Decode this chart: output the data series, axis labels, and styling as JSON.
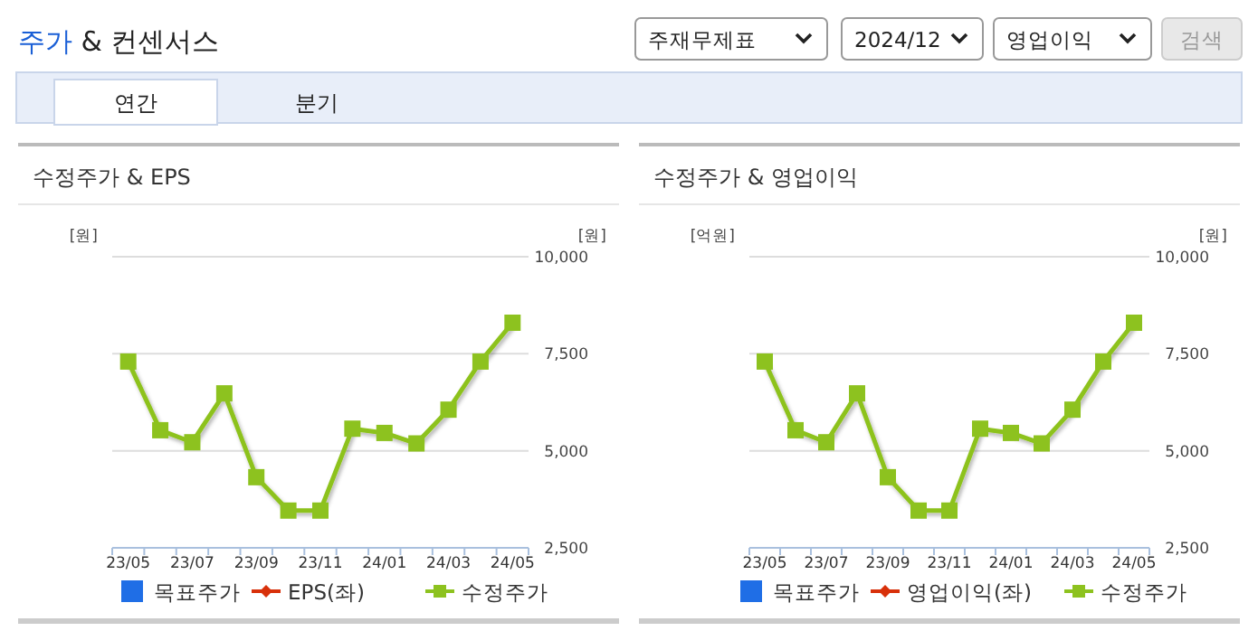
{
  "chart_data": [
    {
      "type": "other",
      "title": "주가 & 컨센서스",
      "annotations": [
        "주재무제표",
        "2024/12",
        "영업이익",
        "검색",
        "연간",
        "분기"
      ]
    },
    {
      "type": "line",
      "title": "수정주가 & EPS",
      "ylabel": "[원]",
      "y2label": "[원]",
      "categories": [
        "23/05",
        null,
        "23/07",
        null,
        "23/09",
        null,
        "23/11",
        null,
        "24/01",
        null,
        "24/03",
        null,
        "24/05"
      ],
      "y2lim": [
        2500,
        10000
      ],
      "y2ticks": [
        {
          "value": 2500,
          "label": "2,500"
        },
        {
          "value": 5000,
          "label": "5,000"
        },
        {
          "value": 7500,
          "label": "7,500"
        },
        {
          "value": 10000,
          "label": "10,000"
        }
      ],
      "grid": "y",
      "legend": "bottom",
      "marker": "square",
      "series": [
        {
          "name": "목표주가",
          "type": "scatter",
          "marker": "square",
          "color": "#1f6ee6",
          "values": [
            null,
            null,
            null,
            null,
            null,
            null,
            null,
            null,
            null,
            null,
            null,
            null,
            null
          ]
        },
        {
          "name": "EPS(좌)",
          "marker": "diamond",
          "color": "#d8300a",
          "values": [
            null,
            null,
            null,
            null,
            null,
            null,
            null,
            null,
            null,
            null,
            null,
            null,
            null
          ]
        },
        {
          "name": "수정주가",
          "axis": "y2",
          "color": "#8dc21f",
          "values": [
            7300,
            5530,
            5220,
            6480,
            4320,
            3460,
            3460,
            5570,
            5460,
            5190,
            6060,
            7300,
            8300
          ]
        }
      ]
    },
    {
      "type": "line",
      "title": "수정주가 & 영업이익",
      "ylabel": "[억원]",
      "y2label": "[원]",
      "categories": [
        "23/05",
        null,
        "23/07",
        null,
        "23/09",
        null,
        "23/11",
        null,
        "24/01",
        null,
        "24/03",
        null,
        "24/05"
      ],
      "y2lim": [
        2500,
        10000
      ],
      "y2ticks": [
        {
          "value": 2500,
          "label": "2,500"
        },
        {
          "value": 5000,
          "label": "5,000"
        },
        {
          "value": 7500,
          "label": "7,500"
        },
        {
          "value": 10000,
          "label": "10,000"
        }
      ],
      "grid": "y",
      "legend": "bottom",
      "marker": "square",
      "series": [
        {
          "name": "목표주가",
          "type": "scatter",
          "marker": "square",
          "color": "#1f6ee6",
          "values": [
            null,
            null,
            null,
            null,
            null,
            null,
            null,
            null,
            null,
            null,
            null,
            null,
            null
          ]
        },
        {
          "name": "영업이익(좌)",
          "marker": "diamond",
          "color": "#d8300a",
          "values": [
            null,
            null,
            null,
            null,
            null,
            null,
            null,
            null,
            null,
            null,
            null,
            null,
            null
          ]
        },
        {
          "name": "수정주가",
          "axis": "y2",
          "color": "#8dc21f",
          "values": [
            7300,
            5530,
            5220,
            6480,
            4320,
            3460,
            3460,
            5570,
            5460,
            5190,
            6060,
            7300,
            8300
          ]
        }
      ]
    }
  ]
}
